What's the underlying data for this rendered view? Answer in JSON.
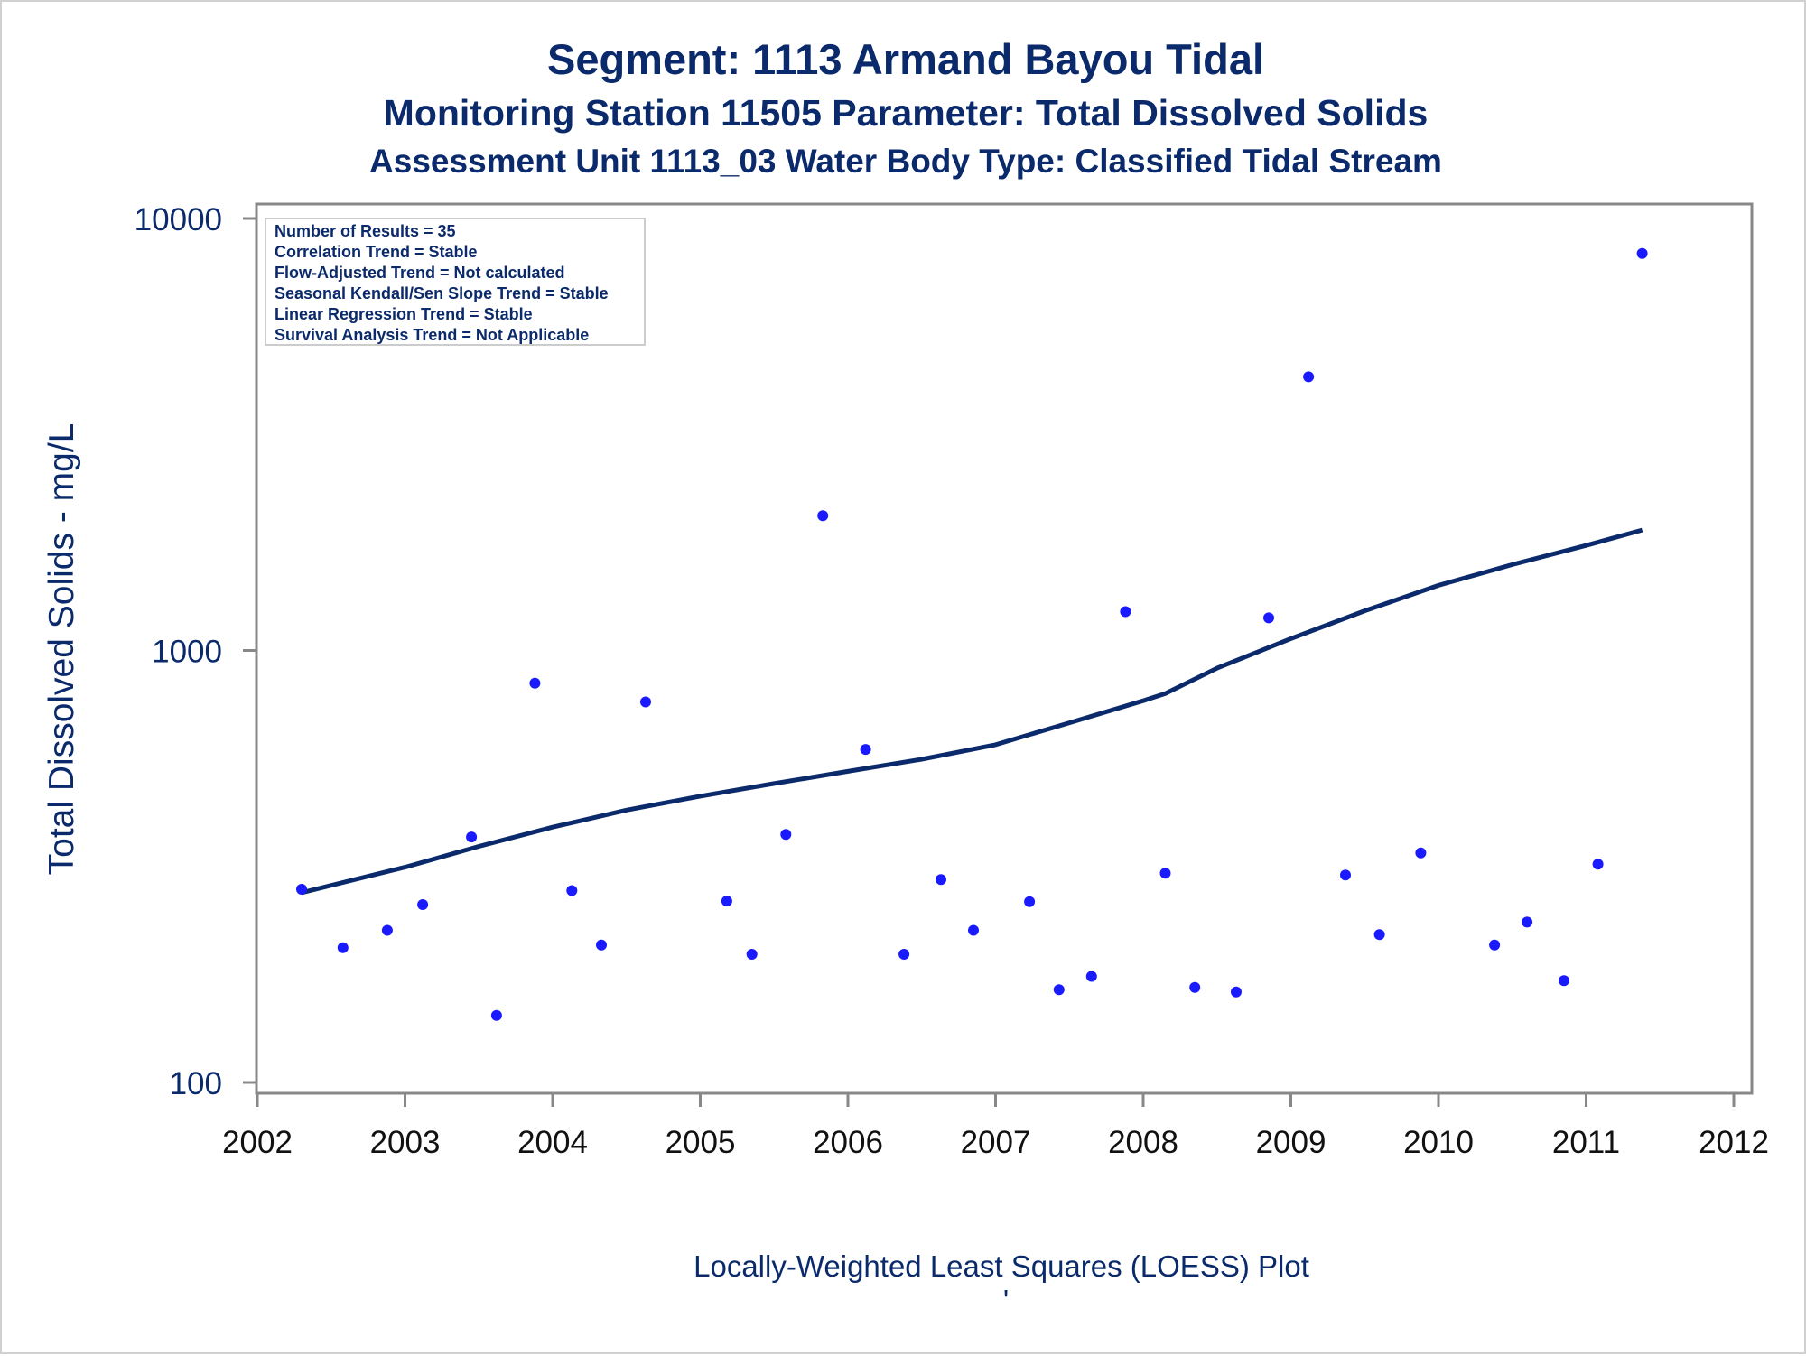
{
  "header": {
    "title": "Segment: 1113  Armand Bayou Tidal",
    "subtitle": "Monitoring Station 11505 Parameter: Total Dissolved Solids",
    "subtitle2": "Assessment Unit 1113_03   Water Body Type: Classified Tidal Stream"
  },
  "stats_box": {
    "lines": [
      "Number of Results = 35",
      "Correlation Trend = Stable",
      "Flow-Adjusted Trend = Not calculated",
      "Seasonal Kendall/Sen Slope Trend = Stable",
      "Linear Regression Trend = Stable",
      "Survival Analysis Trend = Not Applicable"
    ]
  },
  "footer": {
    "note": "Locally-Weighted Least Squares (LOESS) Plot",
    "tick": "'"
  },
  "colors": {
    "title": "#0b2a6b",
    "points": "#1a1aff",
    "loess_line": "#0b2a6b",
    "axis": "#888888"
  },
  "chart_data": {
    "type": "scatter",
    "title": "Segment: 1113  Armand Bayou Tidal",
    "xlabel": "",
    "ylabel": "Total Dissolved Solids - mg/L",
    "x_ticks": [
      2002,
      2003,
      2004,
      2005,
      2006,
      2007,
      2008,
      2009,
      2010,
      2011,
      2012
    ],
    "y_ticks": [
      100,
      1000,
      10000
    ],
    "y_scale": "log",
    "xlim": [
      2002,
      2012
    ],
    "ylim": [
      100,
      10000
    ],
    "grid": false,
    "series": [
      {
        "type": "scatter",
        "points": [
          [
            2002.3,
            280
          ],
          [
            2002.58,
            205
          ],
          [
            2002.88,
            225
          ],
          [
            2003.12,
            258
          ],
          [
            2003.45,
            370
          ],
          [
            2003.62,
            143
          ],
          [
            2003.88,
            840
          ],
          [
            2004.13,
            278
          ],
          [
            2004.33,
            208
          ],
          [
            2004.63,
            760
          ],
          [
            2005.18,
            263
          ],
          [
            2005.35,
            198
          ],
          [
            2005.58,
            375
          ],
          [
            2005.83,
            2050
          ],
          [
            2006.12,
            590
          ],
          [
            2006.38,
            198
          ],
          [
            2006.63,
            295
          ],
          [
            2006.85,
            225
          ],
          [
            2007.23,
            262
          ],
          [
            2007.43,
            164
          ],
          [
            2007.65,
            176
          ],
          [
            2007.88,
            1230
          ],
          [
            2008.15,
            305
          ],
          [
            2008.35,
            166
          ],
          [
            2008.63,
            162
          ],
          [
            2008.85,
            1190
          ],
          [
            2009.12,
            4300
          ],
          [
            2009.37,
            302
          ],
          [
            2009.6,
            220
          ],
          [
            2009.88,
            340
          ],
          [
            2010.38,
            208
          ],
          [
            2010.6,
            235
          ],
          [
            2010.85,
            172
          ],
          [
            2011.08,
            320
          ],
          [
            2011.38,
            8300
          ]
        ]
      },
      {
        "type": "line",
        "points": [
          [
            2002.3,
            275
          ],
          [
            2003.0,
            315
          ],
          [
            2003.5,
            352
          ],
          [
            2004.0,
            390
          ],
          [
            2004.5,
            427
          ],
          [
            2005.0,
            460
          ],
          [
            2005.5,
            492
          ],
          [
            2006.0,
            525
          ],
          [
            2006.5,
            560
          ],
          [
            2007.0,
            605
          ],
          [
            2007.5,
            680
          ],
          [
            2008.0,
            765
          ],
          [
            2008.15,
            795
          ],
          [
            2008.5,
            910
          ],
          [
            2009.0,
            1065
          ],
          [
            2009.5,
            1235
          ],
          [
            2010.0,
            1415
          ],
          [
            2010.5,
            1580
          ],
          [
            2011.0,
            1750
          ],
          [
            2011.38,
            1900
          ]
        ]
      }
    ]
  }
}
